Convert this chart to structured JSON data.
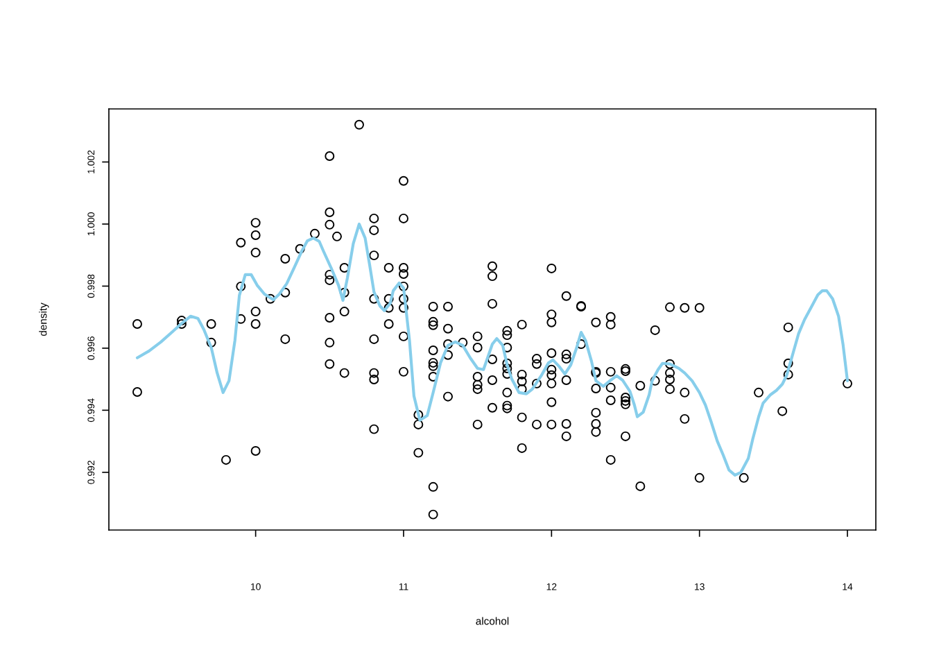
{
  "chart_data": {
    "type": "scatter",
    "xlabel": "alcohol",
    "ylabel": "density",
    "xlim": [
      9.008,
      14.192
    ],
    "ylim": [
      0.99014,
      1.00371
    ],
    "xticks": [
      10,
      11,
      12,
      13,
      14
    ],
    "yticks": [
      0.992,
      0.994,
      0.996,
      0.998,
      {
        "value": 1.0,
        "label": "1.000"
      },
      1.002
    ],
    "grid": false,
    "series": [
      {
        "marker": "circle",
        "color": "#000000",
        "x": [
          9.2,
          9.2,
          9.5,
          9.5,
          9.7,
          9.7,
          9.8,
          9.9,
          9.9,
          9.9,
          10.0,
          10.0,
          10.0,
          10.0,
          10.0,
          10.0,
          10.1,
          10.2,
          10.2,
          10.2,
          10.3,
          10.4,
          10.5,
          10.5,
          10.5,
          10.5,
          10.5,
          10.5,
          10.5,
          10.5,
          10.55,
          10.6,
          10.6,
          10.6,
          10.6,
          10.7,
          10.8,
          10.8,
          10.8,
          10.8,
          10.8,
          10.8,
          10.8,
          10.8,
          10.9,
          10.9,
          10.9,
          10.9,
          11.0,
          11.0,
          11.0,
          11.0,
          11.0,
          11.0,
          11.0,
          11.0,
          11.0,
          11.1,
          11.1,
          11.1,
          11.2,
          11.2,
          11.2,
          11.2,
          11.2,
          11.2,
          11.2,
          11.2,
          11.2,
          11.3,
          11.3,
          11.3,
          11.3,
          11.3,
          11.4,
          11.5,
          11.5,
          11.5,
          11.5,
          11.5,
          11.5,
          11.6,
          11.6,
          11.6,
          11.6,
          11.6,
          11.6,
          11.7,
          11.7,
          11.7,
          11.7,
          11.7,
          11.7,
          11.7,
          11.7,
          11.7,
          11.8,
          11.8,
          11.8,
          11.8,
          11.8,
          11.8,
          11.9,
          11.9,
          11.9,
          11.9,
          12.0,
          12.0,
          12.0,
          12.0,
          12.0,
          12.0,
          12.0,
          12.0,
          12.0,
          12.1,
          12.1,
          12.1,
          12.1,
          12.1,
          12.1,
          12.2,
          12.2,
          12.2,
          12.3,
          12.3,
          12.3,
          12.3,
          12.3,
          12.3,
          12.3,
          12.4,
          12.4,
          12.4,
          12.4,
          12.4,
          12.4,
          12.5,
          12.5,
          12.5,
          12.5,
          12.5,
          12.5,
          12.6,
          12.6,
          12.7,
          12.7,
          12.8,
          12.8,
          12.8,
          12.8,
          12.8,
          12.9,
          12.9,
          12.9,
          13.0,
          13.0,
          13.3,
          13.4,
          13.56,
          13.6,
          13.6,
          13.6,
          14.0
        ],
        "values": [
          0.99678,
          0.99459,
          0.99689,
          0.99678,
          0.99678,
          0.99618,
          0.9924,
          0.9994,
          0.99799,
          0.99694,
          1.00004,
          0.99964,
          0.99908,
          0.99718,
          0.99678,
          0.99269,
          0.99759,
          0.99888,
          0.99779,
          0.99629,
          0.9992,
          0.99969,
          1.00219,
          1.00038,
          0.99998,
          0.99837,
          0.99819,
          0.99698,
          0.99618,
          0.99549,
          0.9996,
          0.99859,
          0.99779,
          0.99718,
          0.9952,
          1.0032,
          1.00018,
          0.9998,
          0.99899,
          0.99759,
          0.99629,
          0.9952,
          0.99499,
          0.99339,
          0.99859,
          0.99759,
          0.9973,
          0.99678,
          1.00139,
          1.00018,
          0.99859,
          0.99839,
          0.99799,
          0.99759,
          0.9973,
          0.99638,
          0.99524,
          0.99385,
          0.99354,
          0.99263,
          0.99734,
          0.99685,
          0.99674,
          0.99593,
          0.99553,
          0.99542,
          0.99508,
          0.99153,
          0.99064,
          0.99734,
          0.99663,
          0.99613,
          0.99578,
          0.99444,
          0.99618,
          0.99638,
          0.99602,
          0.99508,
          0.99482,
          0.99468,
          0.99354,
          0.99864,
          0.99832,
          0.99743,
          0.99564,
          0.99497,
          0.99408,
          0.99656,
          0.99642,
          0.99602,
          0.99551,
          0.99535,
          0.99517,
          0.99457,
          0.99415,
          0.99406,
          0.99676,
          0.99515,
          0.99493,
          0.99468,
          0.99377,
          0.99278,
          0.99566,
          0.99549,
          0.99486,
          0.99354,
          0.99857,
          0.99709,
          0.99683,
          0.99584,
          0.99531,
          0.99513,
          0.99486,
          0.99426,
          0.99354,
          0.99768,
          0.9958,
          0.99566,
          0.99497,
          0.99356,
          0.99316,
          0.99736,
          0.99734,
          0.99613,
          0.99683,
          0.99524,
          0.9952,
          0.9947,
          0.99392,
          0.99356,
          0.9933,
          0.99701,
          0.99676,
          0.99524,
          0.99473,
          0.99432,
          0.9924,
          0.99533,
          0.99526,
          0.99441,
          0.9943,
          0.99419,
          0.99316,
          0.99479,
          0.99155,
          0.99658,
          0.99495,
          0.99732,
          0.99549,
          0.9952,
          0.99499,
          0.99468,
          0.9973,
          0.99457,
          0.99372,
          0.9973,
          0.99182,
          0.99182,
          0.99457,
          0.99397,
          0.99667,
          0.99551,
          0.99515,
          0.99486
        ]
      },
      {
        "type": "line",
        "color": "#87ceeb",
        "x": [
          9.2,
          9.28,
          9.36,
          9.44,
          9.5,
          9.56,
          9.61,
          9.65,
          9.7,
          9.74,
          9.78,
          9.82,
          9.86,
          9.89,
          9.93,
          9.97,
          10.01,
          10.06,
          10.12,
          10.16,
          10.21,
          10.26,
          10.31,
          10.35,
          10.39,
          10.43,
          10.46,
          10.51,
          10.56,
          10.59,
          10.62,
          10.66,
          10.7,
          10.74,
          10.77,
          10.8,
          10.84,
          10.87,
          10.91,
          10.93,
          10.97,
          11.0,
          11.04,
          11.07,
          11.11,
          11.16,
          11.2,
          11.25,
          11.3,
          11.35,
          11.4,
          11.45,
          11.5,
          11.54,
          11.6,
          11.63,
          11.67,
          11.7,
          11.73,
          11.78,
          11.83,
          11.87,
          11.93,
          11.98,
          12.01,
          12.05,
          12.09,
          12.13,
          12.17,
          12.2,
          12.23,
          12.27,
          12.3,
          12.35,
          12.4,
          12.44,
          12.48,
          12.53,
          12.56,
          12.58,
          12.62,
          12.66,
          12.68,
          12.72,
          12.75,
          12.8,
          12.86,
          12.9,
          12.95,
          13.0,
          13.04,
          13.08,
          13.12,
          13.16,
          13.2,
          13.24,
          13.28,
          13.33,
          13.36,
          13.4,
          13.43,
          13.48,
          13.52,
          13.56,
          13.59,
          13.63,
          13.67,
          13.71,
          13.76,
          13.8,
          13.83,
          13.86,
          13.9,
          13.94,
          13.97,
          14.0
        ],
        "values": [
          0.99569,
          0.99591,
          0.9962,
          0.99654,
          0.9968,
          0.99703,
          0.99696,
          0.9966,
          0.99602,
          0.9952,
          0.99457,
          0.99495,
          0.99625,
          0.9977,
          0.99837,
          0.99837,
          0.99803,
          0.99774,
          0.99756,
          0.99774,
          0.99808,
          0.99859,
          0.99911,
          0.99946,
          0.99955,
          0.99944,
          0.99911,
          0.99859,
          0.99803,
          0.99754,
          0.99826,
          0.99937,
          1.0,
          0.99955,
          0.9987,
          0.99781,
          0.99736,
          0.99721,
          0.99745,
          0.99785,
          0.9981,
          0.99794,
          0.99625,
          0.99446,
          0.99368,
          0.99383,
          0.99457,
          0.99553,
          0.99609,
          0.9962,
          0.99609,
          0.99569,
          0.99535,
          0.99531,
          0.99613,
          0.99631,
          0.99609,
          0.99546,
          0.99502,
          0.99457,
          0.99453,
          0.99468,
          0.99511,
          0.99553,
          0.99562,
          0.99542,
          0.99517,
          0.99546,
          0.99602,
          0.99651,
          0.99625,
          0.99558,
          0.99495,
          0.99477,
          0.99497,
          0.99511,
          0.99497,
          0.99461,
          0.99417,
          0.99379,
          0.99394,
          0.9945,
          0.99495,
          0.99531,
          0.99551,
          0.99549,
          0.99535,
          0.9952,
          0.99495,
          0.99457,
          0.99417,
          0.99361,
          0.99301,
          0.99256,
          0.99207,
          0.99191,
          0.992,
          0.99245,
          0.99307,
          0.99379,
          0.99423,
          0.9945,
          0.99464,
          0.99484,
          0.99513,
          0.9958,
          0.99647,
          0.99692,
          0.99736,
          0.99772,
          0.99785,
          0.99785,
          0.99759,
          0.99703,
          0.99613,
          0.99495
        ]
      }
    ]
  }
}
